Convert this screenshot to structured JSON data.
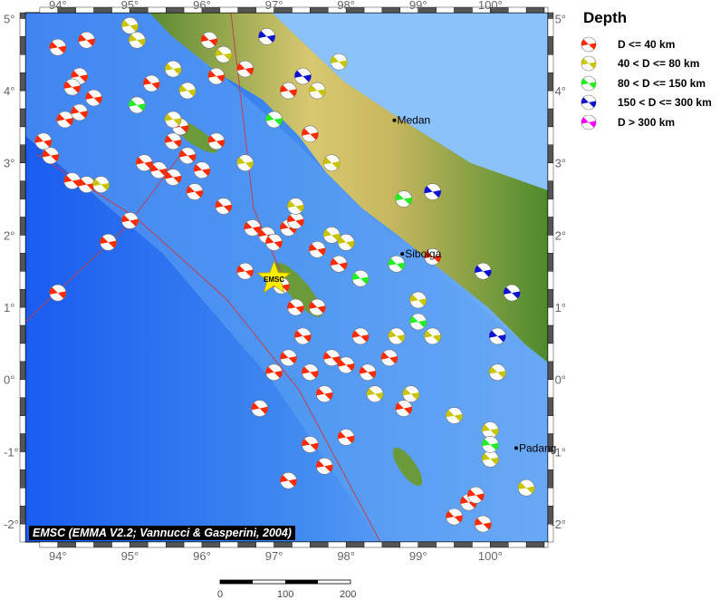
{
  "map": {
    "lon_ticks": [
      94,
      95,
      96,
      97,
      98,
      99,
      100
    ],
    "lat_ticks": [
      5,
      4,
      3,
      2,
      1,
      0,
      -1,
      -2
    ],
    "lon_range": [
      93.55,
      100.8
    ],
    "lat_range": [
      -2.25,
      5.08
    ],
    "cities": [
      {
        "name": "Medan",
        "lon": 98.67,
        "lat": 3.59
      },
      {
        "name": "Sibolga",
        "lon": 98.78,
        "lat": 1.74
      },
      {
        "name": "Padang",
        "lon": 100.36,
        "lat": -0.95
      }
    ],
    "epicenter": {
      "label": "EMSC",
      "lon": 97.0,
      "lat": 1.4,
      "color": "#ffee00"
    },
    "credit": "EMSC (EMMA V2.2; Vannucci & Gasperini, 2004)"
  },
  "legend": {
    "title": "Depth",
    "items": [
      {
        "label": "D <= 40 km",
        "color": "#ff2a00"
      },
      {
        "label": "40 < D <= 80 km",
        "color": "#c8c400"
      },
      {
        "label": "80 < D <= 150 km",
        "color": "#22ee22"
      },
      {
        "label": "150 < D <= 300 km",
        "color": "#1010d0"
      },
      {
        "label": "D > 300 km",
        "color": "#ff00ff"
      }
    ]
  },
  "scale_bar": {
    "labels": [
      "0",
      "100",
      "200"
    ]
  },
  "events": [
    [
      94.0,
      4.6,
      0
    ],
    [
      94.4,
      4.7,
      0
    ],
    [
      94.3,
      4.2,
      0
    ],
    [
      94.2,
      4.05,
      0
    ],
    [
      94.5,
      3.9,
      0
    ],
    [
      94.1,
      3.6,
      0
    ],
    [
      94.3,
      3.7,
      0
    ],
    [
      93.8,
      3.3,
      0
    ],
    [
      93.9,
      3.1,
      0
    ],
    [
      94.2,
      2.75,
      0
    ],
    [
      94.4,
      2.7,
      0
    ],
    [
      95.0,
      2.2,
      0
    ],
    [
      94.7,
      1.9,
      0
    ],
    [
      94.0,
      1.2,
      0
    ],
    [
      95.2,
      3.0,
      0
    ],
    [
      95.4,
      2.9,
      0
    ],
    [
      95.6,
      2.8,
      0
    ],
    [
      95.8,
      3.1,
      0
    ],
    [
      96.0,
      2.9,
      0
    ],
    [
      95.6,
      3.3,
      0
    ],
    [
      96.2,
      3.3,
      0
    ],
    [
      95.9,
      2.6,
      0
    ],
    [
      96.3,
      2.4,
      0
    ],
    [
      95.7,
      3.5,
      0
    ],
    [
      95.3,
      4.1,
      0
    ],
    [
      96.1,
      4.7,
      0
    ],
    [
      96.2,
      4.2,
      0
    ],
    [
      96.6,
      4.3,
      0
    ],
    [
      96.7,
      2.1,
      0
    ],
    [
      96.9,
      2.0,
      0
    ],
    [
      97.0,
      1.9,
      0
    ],
    [
      97.2,
      2.1,
      0
    ],
    [
      96.6,
      1.5,
      0
    ],
    [
      97.1,
      1.3,
      0
    ],
    [
      97.3,
      1.0,
      0
    ],
    [
      97.6,
      1.0,
      0
    ],
    [
      97.4,
      0.6,
      0
    ],
    [
      97.2,
      0.3,
      0
    ],
    [
      97.0,
      0.1,
      0
    ],
    [
      97.5,
      0.1,
      0
    ],
    [
      97.8,
      0.3,
      0
    ],
    [
      98.0,
      0.2,
      0
    ],
    [
      98.3,
      0.1,
      0
    ],
    [
      97.7,
      -0.2,
      0
    ],
    [
      97.9,
      1.6,
      0
    ],
    [
      97.6,
      1.8,
      0
    ],
    [
      97.3,
      2.2,
      0
    ],
    [
      97.5,
      3.4,
      0
    ],
    [
      97.2,
      4.0,
      0
    ],
    [
      98.2,
      0.6,
      0
    ],
    [
      98.6,
      0.3,
      0
    ],
    [
      98.8,
      -0.4,
      0
    ],
    [
      98.0,
      -0.8,
      0
    ],
    [
      97.5,
      -0.9,
      0
    ],
    [
      97.7,
      -1.2,
      0
    ],
    [
      97.2,
      -1.4,
      0
    ],
    [
      96.8,
      -0.4,
      0
    ],
    [
      99.7,
      -1.7,
      0
    ],
    [
      99.5,
      -1.9,
      0
    ],
    [
      99.9,
      -2.0,
      0
    ],
    [
      99.8,
      -1.6,
      0
    ],
    [
      99.2,
      1.7,
      0
    ],
    [
      94.6,
      2.7,
      1
    ],
    [
      95.1,
      4.7,
      1
    ],
    [
      95.0,
      4.9,
      1
    ],
    [
      95.6,
      4.3,
      1
    ],
    [
      95.8,
      4.0,
      1
    ],
    [
      95.6,
      3.6,
      1
    ],
    [
      96.3,
      4.5,
      1
    ],
    [
      96.6,
      3.0,
      1
    ],
    [
      97.3,
      2.4,
      1
    ],
    [
      97.8,
      2.0,
      1
    ],
    [
      98.0,
      1.9,
      1
    ],
    [
      97.6,
      4.0,
      1
    ],
    [
      97.9,
      4.4,
      1
    ],
    [
      97.8,
      3.0,
      1
    ],
    [
      99.0,
      1.1,
      1
    ],
    [
      99.2,
      0.6,
      1
    ],
    [
      98.7,
      0.6,
      1
    ],
    [
      99.5,
      -0.5,
      1
    ],
    [
      100.0,
      -0.7,
      1
    ],
    [
      100.0,
      -1.1,
      1
    ],
    [
      100.5,
      -1.5,
      1
    ],
    [
      98.9,
      -0.2,
      1
    ],
    [
      98.4,
      -0.2,
      1
    ],
    [
      100.1,
      0.1,
      1
    ],
    [
      95.1,
      3.8,
      2
    ],
    [
      97.0,
      3.6,
      2
    ],
    [
      98.2,
      1.4,
      2
    ],
    [
      99.0,
      0.8,
      2
    ],
    [
      100.0,
      -0.9,
      2
    ],
    [
      98.8,
      2.5,
      2
    ],
    [
      98.7,
      1.6,
      2
    ],
    [
      96.9,
      4.75,
      3
    ],
    [
      97.4,
      4.2,
      3
    ],
    [
      99.2,
      2.6,
      3
    ],
    [
      99.9,
      1.5,
      3
    ],
    [
      100.3,
      1.2,
      3
    ],
    [
      100.1,
      0.6,
      3
    ]
  ]
}
